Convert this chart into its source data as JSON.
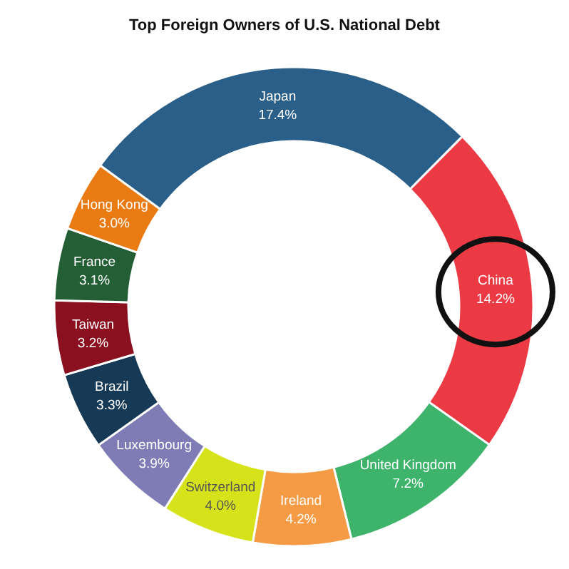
{
  "chart_data": {
    "type": "donut",
    "title": "Top Foreign Owners of U.S. National Debt",
    "categories": [
      "Japan",
      "China",
      "United Kingdom",
      "Ireland",
      "Switzerland",
      "Luxembourg",
      "Brazil",
      "Taiwan",
      "France",
      "Hong Kong"
    ],
    "values": [
      17.4,
      14.2,
      7.2,
      4.2,
      4.0,
      3.9,
      3.3,
      3.2,
      3.1,
      3.0
    ],
    "value_labels": [
      "17.4%",
      "14.2%",
      "7.2%",
      "4.2%",
      "4.0%",
      "3.9%",
      "3.3%",
      "3.2%",
      "3.1%",
      "3.0%"
    ],
    "colors": [
      "#2a5f8a",
      "#ec3a45",
      "#3db36b",
      "#f59b45",
      "#d6e21a",
      "#7f7bb5",
      "#163a56",
      "#8a1020",
      "#245e35",
      "#ea7a12"
    ]
  }
}
